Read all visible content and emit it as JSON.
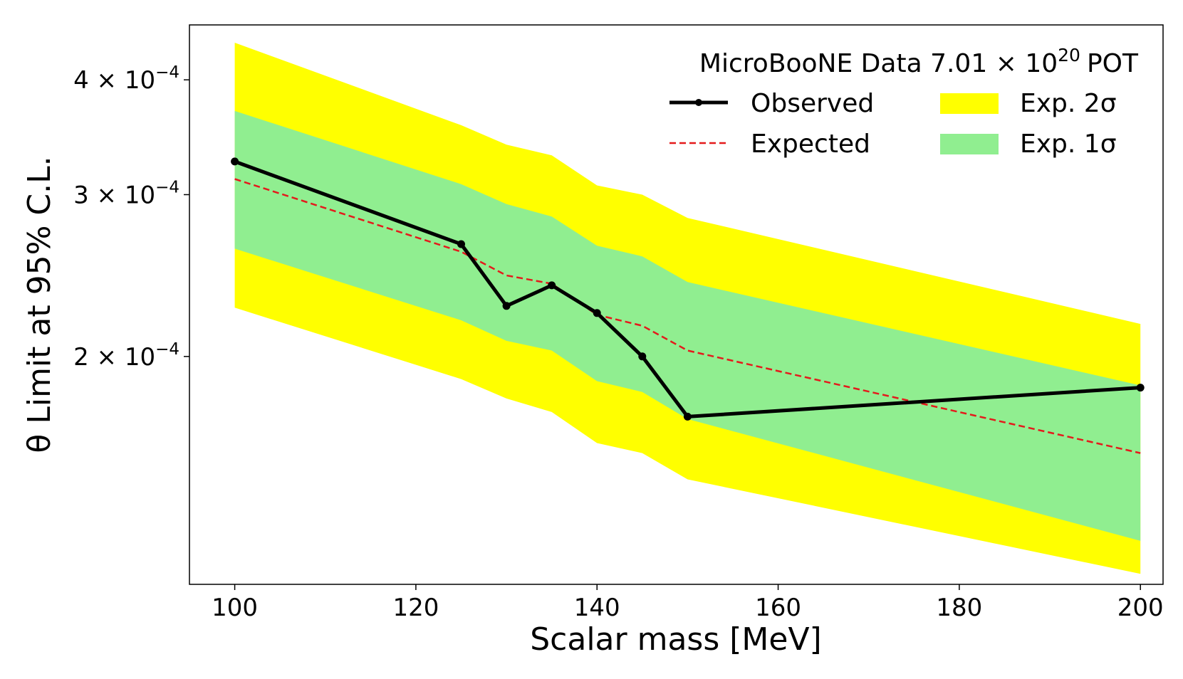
{
  "chart_data": {
    "type": "line",
    "x": [
      100,
      125,
      130,
      135,
      140,
      145,
      150,
      200
    ],
    "series": [
      {
        "name": "Observed",
        "values": [
          0.000326,
          0.000265,
          0.000227,
          0.000239,
          0.000223,
          0.0002,
          0.000172,
          0.000185
        ]
      },
      {
        "name": "Expected",
        "values": [
          0.000312,
          0.00026,
          0.000245,
          0.00024,
          0.000222,
          0.000216,
          0.000203,
          0.000157
        ]
      }
    ],
    "bands": [
      {
        "name": "Exp. 2σ",
        "color": "#ffff00",
        "lower": [
          0.000226,
          0.000189,
          0.00018,
          0.000174,
          0.000161,
          0.000157,
          0.000147,
          0.000116
        ],
        "upper": [
          0.000439,
          0.000357,
          0.00034,
          0.000331,
          0.000307,
          0.0003,
          0.000283,
          0.000217
        ]
      },
      {
        "name": "Exp. 1σ",
        "color": "#90ee90",
        "lower": [
          0.000262,
          0.000219,
          0.000208,
          0.000203,
          0.000188,
          0.000183,
          0.000171,
          0.000126
        ],
        "upper": [
          0.00037,
          0.000308,
          0.000293,
          0.000284,
          0.000264,
          0.000257,
          0.000241,
          0.000186
        ]
      }
    ],
    "xlabel": "Scalar mass [MeV]",
    "ylabel": "θ Limit at 95% C.L.",
    "xlim": [
      95,
      202.5
    ],
    "ylim": [
      0.000113,
      0.000459
    ],
    "yscale": "log",
    "x_ticks": [
      100,
      120,
      140,
      160,
      180,
      200
    ],
    "y_ticks": [
      {
        "value": 0.0002,
        "mantissa": "2",
        "times": "×",
        "base": "10",
        "exponent": "−4"
      },
      {
        "value": 0.0003,
        "mantissa": "3",
        "times": "×",
        "base": "10",
        "exponent": "−4"
      },
      {
        "value": 0.0004,
        "mantissa": "4",
        "times": "×",
        "base": "10",
        "exponent": "−4"
      }
    ],
    "legend": {
      "title_text": "MicroBooNE Data 7.01",
      "title_times": "×",
      "title_base": "10",
      "title_exponent": "20",
      "title_unit": "POT",
      "placement": "top-right"
    },
    "colors": {
      "observed": "#000000",
      "expected": "#e41a1c",
      "two_sigma": "#ffff00",
      "one_sigma": "#90ee90"
    }
  }
}
